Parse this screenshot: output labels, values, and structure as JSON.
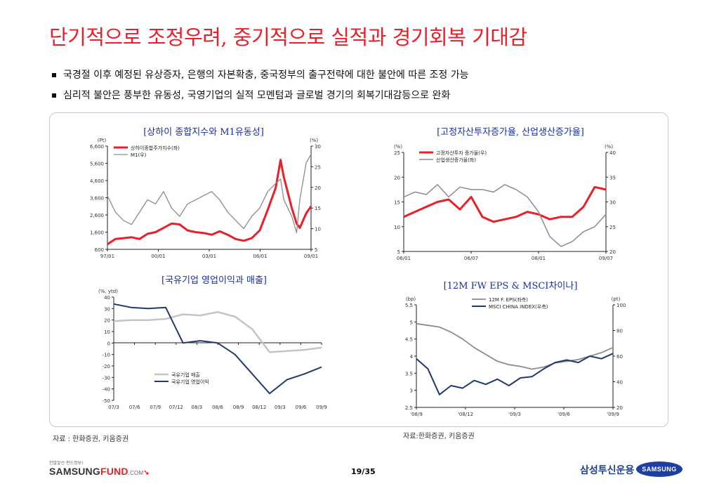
{
  "slide": {
    "title": "단기적으로 조정우려, 중기적으로 실적과 경기회복 기대감",
    "bullets": [
      "국경절 이후 예정된 유상증자, 은행의 자본확충, 중국정부의 출구전략에 대한 불안에 따른 조정 가능",
      "심리적 불안은 풍부한 유동성, 국영기업의 실적 모멘텀과 글로벌 경기의 회복기대감등으로 완화"
    ],
    "source_left": "자료 : 한화증권, 키움증권",
    "source_right": "자료:한화증권, 키움증권",
    "page": "19/35",
    "logo_small": "한발앞선 펀드정보!",
    "logo_samsung": "SAMSUNG",
    "logo_fund": "FUND",
    "logo_com": ".COM",
    "brand_kr": "삼성투신운용",
    "brand_en": "SAMSUNG",
    "colors": {
      "title": "#e8202a",
      "chart_title": "#1a2fa0",
      "red": "#e8202a",
      "gray": "#8c8c8c",
      "lightgray": "#c4c4c4",
      "navy": "#1f3a6e"
    }
  },
  "chart_data": [
    {
      "id": "c1",
      "type": "line",
      "title": "[상하이 종합지수와 M1유동성]",
      "y_unit": "(Pt)",
      "y2_unit": "(%)",
      "x_ticks": [
        "97/01",
        "00/01",
        "03/01",
        "06/01",
        "09/01"
      ],
      "y_ticks": [
        "600",
        "1,600",
        "2,600",
        "3,600",
        "4,600",
        "5,600",
        "6,600"
      ],
      "y2_ticks": [
        "5",
        "10",
        "15",
        "20",
        "25",
        "30"
      ],
      "ylim": [
        600,
        6600
      ],
      "y2lim": [
        5,
        30
      ],
      "x": [
        1997.0,
        1997.5,
        1998.0,
        1998.5,
        1999.0,
        1999.5,
        2000.0,
        2000.5,
        2001.0,
        2001.5,
        2002.0,
        2002.5,
        2003.0,
        2003.5,
        2004.0,
        2004.5,
        2005.0,
        2005.5,
        2006.0,
        2006.5,
        2007.0,
        2007.5,
        2007.8,
        2008.0,
        2008.5,
        2008.8,
        2009.0,
        2009.4,
        2009.7
      ],
      "series": [
        {
          "name": "상하이종합주가지수(좌)",
          "axis": "left",
          "values": [
            900,
            1200,
            1250,
            1300,
            1200,
            1500,
            1600,
            1850,
            2100,
            2050,
            1700,
            1600,
            1550,
            1450,
            1650,
            1450,
            1200,
            1100,
            1250,
            1700,
            2900,
            4200,
            5800,
            4800,
            3000,
            2100,
            1850,
            2700,
            3100
          ]
        },
        {
          "name": "M1(우)",
          "axis": "right",
          "values": [
            18,
            14,
            12,
            11,
            14,
            17,
            16,
            19,
            15,
            13,
            16,
            17,
            18,
            19,
            17,
            14,
            12,
            10,
            13,
            15,
            19,
            21,
            22,
            17,
            13,
            9,
            17,
            26,
            28
          ]
        }
      ],
      "legend": "top-left",
      "source": "자료 : 한화증권, 키움증권"
    },
    {
      "id": "c2",
      "type": "line",
      "title": "[고정자산투자증가율, 산업생산증가율]",
      "y_unit": "(%)",
      "y2_unit": "(%)",
      "x_ticks": [
        "06/01",
        "06/07",
        "08/01",
        "09/07"
      ],
      "y_ticks": [
        "5",
        "10",
        "15",
        "20",
        "25"
      ],
      "y2_ticks": [
        "20",
        "25",
        "30",
        "35",
        "40"
      ],
      "ylim": [
        5,
        25
      ],
      "y2lim": [
        20,
        40
      ],
      "x": [
        2006.0,
        2006.2,
        2006.4,
        2006.6,
        2006.8,
        2007.0,
        2007.2,
        2007.4,
        2007.6,
        2007.8,
        2008.0,
        2008.2,
        2008.4,
        2008.6,
        2008.8,
        2009.0,
        2009.2,
        2009.4,
        2009.6
      ],
      "series": [
        {
          "name": "고정자산투자 증가율(우)",
          "axis": "right",
          "values": [
            27,
            28,
            29,
            30,
            30.5,
            28.5,
            31,
            27,
            26,
            26.5,
            27,
            28,
            27.5,
            26.5,
            27,
            27,
            29,
            33,
            32.5
          ]
        },
        {
          "name": "산업생산증가율(좌)",
          "axis": "left",
          "values": [
            16,
            17,
            16.5,
            18.5,
            16,
            18,
            17.5,
            17.5,
            17,
            18.5,
            17.5,
            16,
            13,
            8,
            6,
            7,
            9,
            10,
            12.5
          ]
        }
      ],
      "legend": "top-left"
    },
    {
      "id": "c3",
      "type": "line",
      "title": "[국유기업 영업이익과 매출]",
      "y_unit": "(%, ytd)",
      "x_ticks": [
        "07/3",
        "07/6",
        "07/9",
        "07/12",
        "08/3",
        "08/6",
        "08/9",
        "08/12",
        "09/3",
        "09/6",
        "09/9"
      ],
      "y_ticks": [
        "-50",
        "-40",
        "-30",
        "-20",
        "-10",
        "0",
        "10",
        "20",
        "30",
        "40"
      ],
      "ylim": [
        -50,
        40
      ],
      "series": [
        {
          "name": "국유기업 매출",
          "values": [
            19,
            20,
            20,
            21,
            25,
            24,
            27,
            23,
            12,
            -8,
            -7,
            -6,
            -4
          ]
        },
        {
          "name": "국유기업 영업이익",
          "values": [
            34,
            31,
            30,
            31,
            0,
            2,
            0,
            -10,
            -27,
            -44,
            -32,
            -27,
            -21
          ]
        }
      ],
      "legend": "bottom-center",
      "source": "자료:한화증권, 키움증권"
    },
    {
      "id": "c4",
      "type": "line",
      "title": "[12M FW EPS & MSCI차이나]",
      "y_unit": "(bp)",
      "y2_unit": "(pt)",
      "x_ticks": [
        "'08/9",
        "'08/12",
        "'09/3",
        "'09/6",
        "'09/9"
      ],
      "y_ticks": [
        "2.5",
        "3",
        "3.5",
        "4",
        "4.5",
        "5",
        "5.5"
      ],
      "y2_ticks": [
        "20",
        "40",
        "60",
        "80",
        "100"
      ],
      "ylim": [
        2.5,
        5.5
      ],
      "y2lim": [
        20,
        100
      ],
      "series": [
        {
          "name": "12M F. EPS(좌측)",
          "axis": "left",
          "values": [
            4.95,
            4.9,
            4.85,
            4.7,
            4.5,
            4.25,
            4.05,
            3.85,
            3.75,
            3.7,
            3.62,
            3.68,
            3.8,
            3.85,
            3.9,
            4.0,
            4.1,
            4.25
          ]
        },
        {
          "name": "MSCI CHINA INDEX(우측)",
          "axis": "right",
          "values": [
            58,
            50,
            30,
            37,
            35,
            41,
            38,
            42,
            37,
            43,
            44,
            50,
            55,
            57,
            55,
            60,
            58,
            62
          ]
        }
      ],
      "legend": "top-center"
    }
  ]
}
